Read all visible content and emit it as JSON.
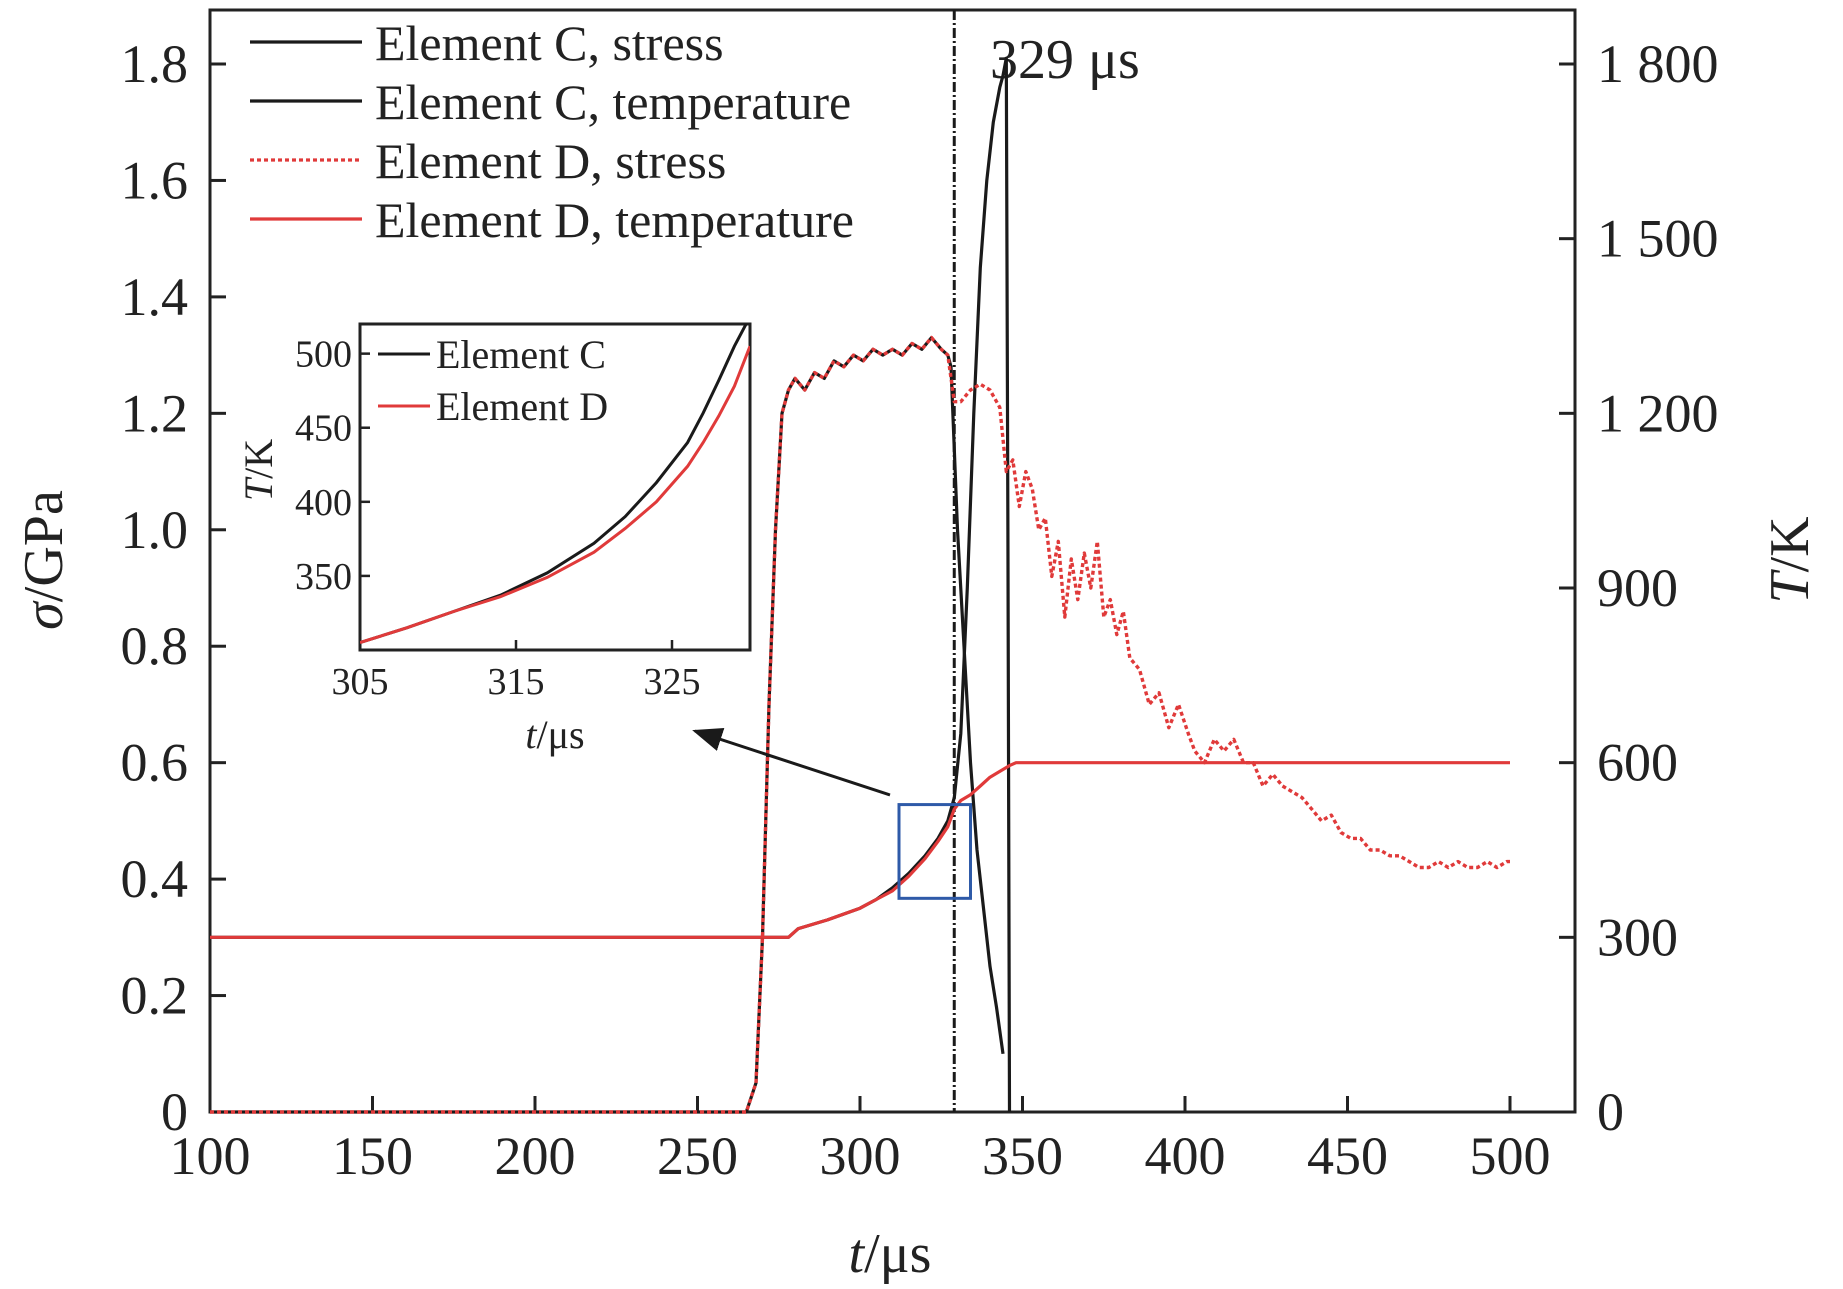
{
  "chart_data": {
    "type": "line",
    "annotation": "329 μs",
    "marker_x": 329,
    "xlabel": {
      "italic": "t",
      "rest": "/μs"
    },
    "ylabel_left": {
      "italic": "σ",
      "rest": "/GPa"
    },
    "ylabel_right": {
      "italic": "T",
      "rest": "/K"
    },
    "xlim": [
      100,
      500
    ],
    "ylim_left": [
      0,
      1.8
    ],
    "ylim_right": [
      0,
      1800
    ],
    "x_ticks": [
      "100",
      "150",
      "200",
      "250",
      "300",
      "350",
      "400",
      "450",
      "500"
    ],
    "x_tick_values": [
      100,
      150,
      200,
      250,
      300,
      350,
      400,
      450,
      500
    ],
    "y_left_ticks": [
      "0",
      "0.2",
      "0.4",
      "0.6",
      "0.8",
      "1.0",
      "1.2",
      "1.4",
      "1.6",
      "1.8"
    ],
    "y_left_tick_values": [
      0,
      0.2,
      0.4,
      0.6,
      0.8,
      1.0,
      1.2,
      1.4,
      1.6,
      1.8
    ],
    "y_right_ticks": [
      "0",
      "300",
      "600",
      "900",
      "1 200",
      "1 500",
      "1 800"
    ],
    "y_right_tick_values": [
      0,
      300,
      600,
      900,
      1200,
      1500,
      1800
    ],
    "colors": {
      "black": "#1a1a1a",
      "red": "#e03a3a",
      "box": "#2e5aa8"
    },
    "legend": [
      "Element C, stress",
      "Element C, temperature",
      "Element D, stress",
      "Element D, temperature"
    ],
    "series": [
      {
        "name": "Element C, stress",
        "axis": "left",
        "style": "solid",
        "color": "#1a1a1a",
        "points": [
          [
            100,
            0
          ],
          [
            265,
            0
          ],
          [
            268,
            0.05
          ],
          [
            270,
            0.3
          ],
          [
            272,
            0.7
          ],
          [
            274,
            1.0
          ],
          [
            276,
            1.2
          ],
          [
            278,
            1.24
          ],
          [
            280,
            1.26
          ],
          [
            283,
            1.24
          ],
          [
            286,
            1.27
          ],
          [
            289,
            1.26
          ],
          [
            292,
            1.29
          ],
          [
            295,
            1.28
          ],
          [
            298,
            1.3
          ],
          [
            301,
            1.29
          ],
          [
            304,
            1.31
          ],
          [
            307,
            1.3
          ],
          [
            310,
            1.31
          ],
          [
            313,
            1.3
          ],
          [
            316,
            1.32
          ],
          [
            319,
            1.31
          ],
          [
            322,
            1.33
          ],
          [
            325,
            1.31
          ],
          [
            327,
            1.3
          ],
          [
            328,
            1.28
          ],
          [
            330,
            1.0
          ],
          [
            332,
            0.8
          ],
          [
            334,
            0.6
          ],
          [
            336,
            0.45
          ],
          [
            338,
            0.35
          ],
          [
            340,
            0.25
          ],
          [
            342,
            0.18
          ],
          [
            344,
            0.1
          ]
        ]
      },
      {
        "name": "Element C, temperature",
        "axis": "right",
        "style": "solid",
        "color": "#1a1a1a",
        "points": [
          [
            100,
            300
          ],
          [
            278,
            300
          ],
          [
            281,
            315
          ],
          [
            290,
            330
          ],
          [
            300,
            350
          ],
          [
            305,
            365
          ],
          [
            310,
            385
          ],
          [
            315,
            410
          ],
          [
            320,
            440
          ],
          [
            324,
            470
          ],
          [
            327,
            500
          ],
          [
            329,
            540
          ],
          [
            331,
            650
          ],
          [
            333,
            900
          ],
          [
            335,
            1200
          ],
          [
            337,
            1450
          ],
          [
            339,
            1600
          ],
          [
            341,
            1700
          ],
          [
            343,
            1760
          ],
          [
            344,
            1780
          ],
          [
            345,
            1810
          ],
          [
            345.5,
            1000
          ],
          [
            346,
            0
          ]
        ]
      },
      {
        "name": "Element D, stress",
        "axis": "left",
        "style": "dotted",
        "color": "#e03a3a",
        "points": [
          [
            100,
            0
          ],
          [
            265,
            0
          ],
          [
            268,
            0.05
          ],
          [
            270,
            0.3
          ],
          [
            272,
            0.7
          ],
          [
            274,
            1.0
          ],
          [
            276,
            1.2
          ],
          [
            278,
            1.24
          ],
          [
            280,
            1.26
          ],
          [
            283,
            1.24
          ],
          [
            286,
            1.27
          ],
          [
            289,
            1.26
          ],
          [
            292,
            1.29
          ],
          [
            295,
            1.28
          ],
          [
            298,
            1.3
          ],
          [
            301,
            1.29
          ],
          [
            304,
            1.31
          ],
          [
            307,
            1.3
          ],
          [
            310,
            1.31
          ],
          [
            313,
            1.3
          ],
          [
            316,
            1.32
          ],
          [
            319,
            1.31
          ],
          [
            322,
            1.33
          ],
          [
            325,
            1.31
          ],
          [
            327,
            1.3
          ],
          [
            329,
            1.22
          ],
          [
            331,
            1.22
          ],
          [
            334,
            1.24
          ],
          [
            337,
            1.25
          ],
          [
            340,
            1.24
          ],
          [
            343,
            1.21
          ],
          [
            345,
            1.1
          ],
          [
            347,
            1.12
          ],
          [
            349,
            1.04
          ],
          [
            351,
            1.1
          ],
          [
            353,
            1.07
          ],
          [
            355,
            1.0
          ],
          [
            357,
            1.02
          ],
          [
            359,
            0.92
          ],
          [
            361,
            0.98
          ],
          [
            363,
            0.85
          ],
          [
            365,
            0.95
          ],
          [
            367,
            0.88
          ],
          [
            369,
            0.96
          ],
          [
            371,
            0.9
          ],
          [
            373,
            0.98
          ],
          [
            375,
            0.85
          ],
          [
            377,
            0.88
          ],
          [
            379,
            0.82
          ],
          [
            381,
            0.86
          ],
          [
            383,
            0.78
          ],
          [
            386,
            0.76
          ],
          [
            389,
            0.7
          ],
          [
            392,
            0.72
          ],
          [
            395,
            0.66
          ],
          [
            398,
            0.7
          ],
          [
            401,
            0.65
          ],
          [
            403,
            0.62
          ],
          [
            406,
            0.6
          ],
          [
            409,
            0.64
          ],
          [
            412,
            0.62
          ],
          [
            415,
            0.64
          ],
          [
            418,
            0.6
          ],
          [
            421,
            0.6
          ],
          [
            424,
            0.56
          ],
          [
            427,
            0.58
          ],
          [
            430,
            0.56
          ],
          [
            433,
            0.55
          ],
          [
            436,
            0.54
          ],
          [
            439,
            0.52
          ],
          [
            442,
            0.5
          ],
          [
            445,
            0.51
          ],
          [
            448,
            0.48
          ],
          [
            451,
            0.47
          ],
          [
            454,
            0.47
          ],
          [
            457,
            0.45
          ],
          [
            460,
            0.45
          ],
          [
            463,
            0.44
          ],
          [
            466,
            0.44
          ],
          [
            469,
            0.43
          ],
          [
            472,
            0.42
          ],
          [
            475,
            0.42
          ],
          [
            478,
            0.43
          ],
          [
            481,
            0.42
          ],
          [
            484,
            0.43
          ],
          [
            487,
            0.42
          ],
          [
            490,
            0.42
          ],
          [
            493,
            0.43
          ],
          [
            496,
            0.42
          ],
          [
            499,
            0.43
          ],
          [
            500,
            0.43
          ]
        ]
      },
      {
        "name": "Element D, temperature",
        "axis": "right",
        "style": "solid",
        "color": "#e03a3a",
        "points": [
          [
            100,
            300
          ],
          [
            278,
            300
          ],
          [
            281,
            315
          ],
          [
            290,
            330
          ],
          [
            300,
            350
          ],
          [
            305,
            365
          ],
          [
            310,
            380
          ],
          [
            315,
            405
          ],
          [
            320,
            435
          ],
          [
            324,
            465
          ],
          [
            327,
            490
          ],
          [
            329,
            520
          ],
          [
            331,
            535
          ],
          [
            334,
            545
          ],
          [
            337,
            560
          ],
          [
            340,
            575
          ],
          [
            343,
            585
          ],
          [
            346,
            595
          ],
          [
            348,
            600
          ],
          [
            500,
            600
          ]
        ]
      }
    ],
    "inset": {
      "xlim": [
        305,
        330
      ],
      "ylim": [
        300,
        520
      ],
      "x_ticks": [
        "305",
        "315",
        "325"
      ],
      "x_tick_values": [
        305,
        315,
        325
      ],
      "y_ticks": [
        "350",
        "400",
        "450",
        "500"
      ],
      "y_tick_values": [
        350,
        400,
        450,
        500
      ],
      "xlabel": {
        "italic": "t",
        "rest": "/μs"
      },
      "ylabel": {
        "italic": "T",
        "rest": "/K"
      },
      "legend": [
        "Element C",
        "Element D"
      ],
      "series": [
        {
          "name": "Element C",
          "color": "#1a1a1a",
          "points": [
            [
              305,
              305
            ],
            [
              308,
              315
            ],
            [
              311,
              326
            ],
            [
              314,
              337
            ],
            [
              317,
              352
            ],
            [
              320,
              372
            ],
            [
              322,
              390
            ],
            [
              324,
              413
            ],
            [
              326,
              440
            ],
            [
              327,
              460
            ],
            [
              328,
              482
            ],
            [
              329,
              505
            ],
            [
              330,
              525
            ]
          ]
        },
        {
          "name": "Element D",
          "color": "#e03a3a",
          "points": [
            [
              305,
              305
            ],
            [
              308,
              315
            ],
            [
              311,
              326
            ],
            [
              314,
              336
            ],
            [
              317,
              349
            ],
            [
              320,
              366
            ],
            [
              322,
              382
            ],
            [
              324,
              400
            ],
            [
              326,
              424
            ],
            [
              327,
              440
            ],
            [
              328,
              458
            ],
            [
              329,
              478
            ],
            [
              330,
              505
            ]
          ]
        }
      ]
    },
    "zoom_box": {
      "x": [
        312,
        334
      ],
      "y_right": [
        367,
        528
      ]
    },
    "arrow": {
      "from_x": 323,
      "from_y_right": 540,
      "to_x": 334,
      "to_y_right": 560
    }
  }
}
